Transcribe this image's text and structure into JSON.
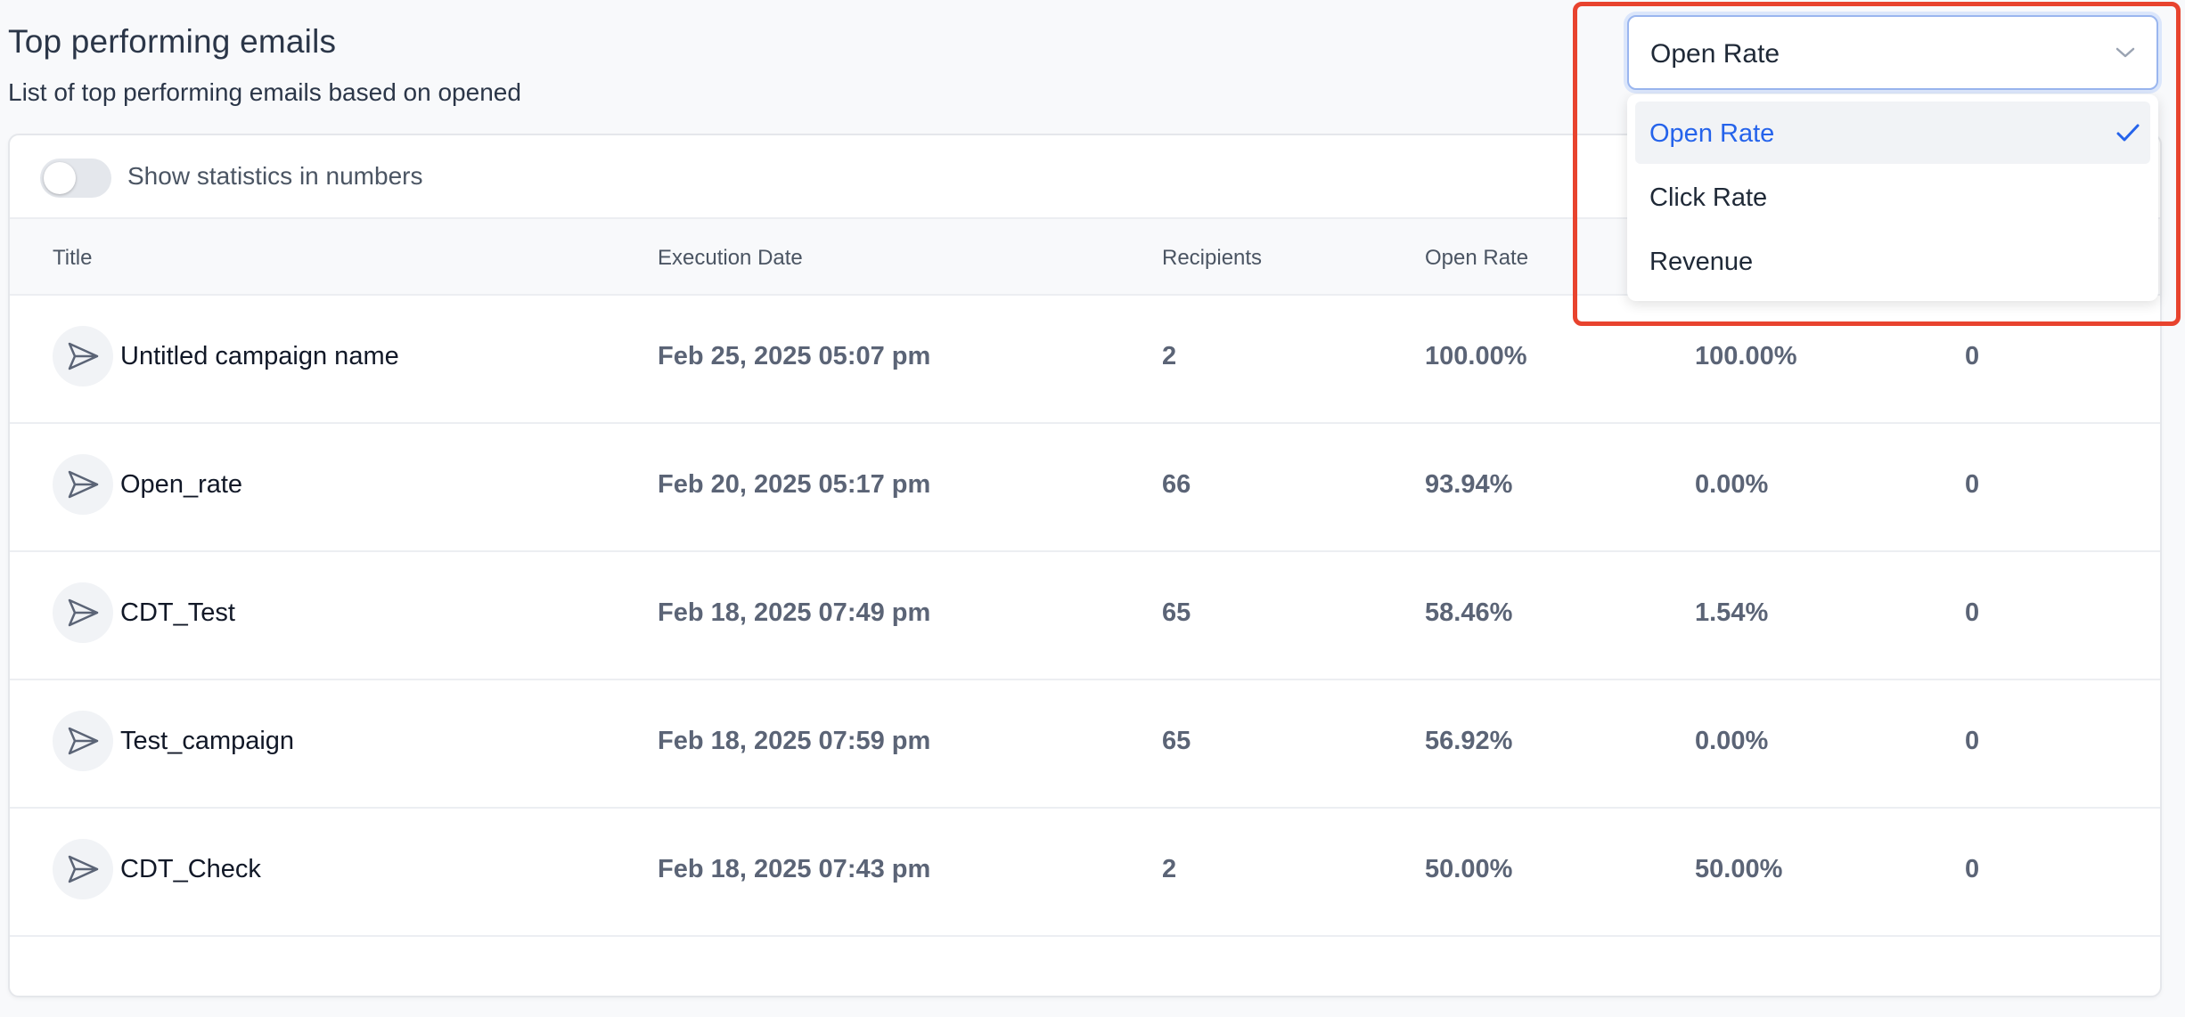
{
  "header": {
    "title": "Top performing emails",
    "subtitle": "List of top performing emails based on opened"
  },
  "toggle": {
    "label": "Show statistics in numbers",
    "on": false
  },
  "table": {
    "columns": [
      "Title",
      "Execution Date",
      "Recipients",
      "Open Rate"
    ],
    "rows": [
      {
        "title": "Untitled campaign name",
        "date": "Feb 25, 2025 05:07 pm",
        "recipients": "2",
        "open_rate": "100.00%",
        "col5": "100.00%",
        "col6": "0"
      },
      {
        "title": "Open_rate",
        "date": "Feb 20, 2025 05:17 pm",
        "recipients": "66",
        "open_rate": "93.94%",
        "col5": "0.00%",
        "col6": "0"
      },
      {
        "title": "CDT_Test",
        "date": "Feb 18, 2025 07:49 pm",
        "recipients": "65",
        "open_rate": "58.46%",
        "col5": "1.54%",
        "col6": "0"
      },
      {
        "title": "Test_campaign",
        "date": "Feb 18, 2025 07:59 pm",
        "recipients": "65",
        "open_rate": "56.92%",
        "col5": "0.00%",
        "col6": "0"
      },
      {
        "title": "CDT_Check",
        "date": "Feb 18, 2025 07:43 pm",
        "recipients": "2",
        "open_rate": "50.00%",
        "col5": "50.00%",
        "col6": "0"
      }
    ]
  },
  "sort_select": {
    "value": "Open Rate",
    "options": [
      "Open Rate",
      "Click Rate",
      "Revenue"
    ],
    "selected_index": 0
  },
  "colors": {
    "accent": "#2563eb",
    "highlight": "#e8432e"
  }
}
